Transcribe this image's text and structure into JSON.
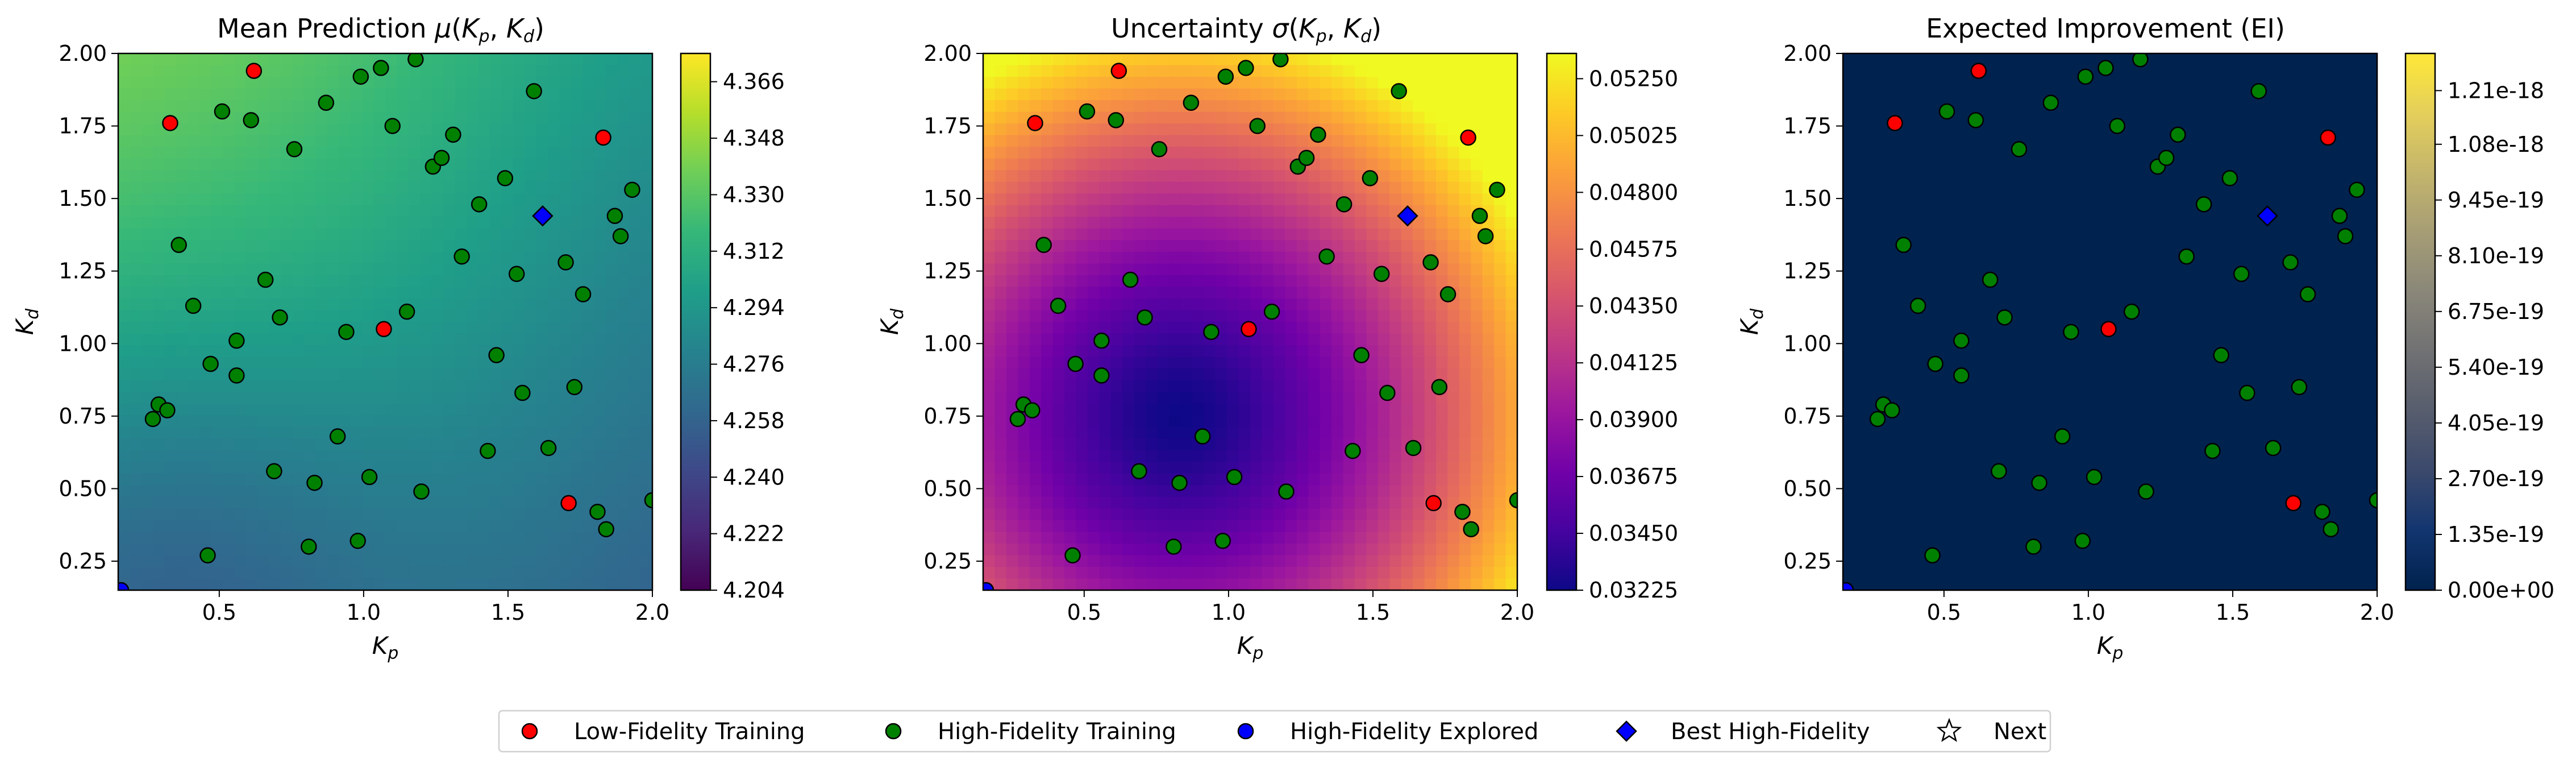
{
  "chart_data": [
    {
      "type": "heatmap",
      "title": "Mean Prediction μ(Kp, Kd)",
      "xlabel": "Kp",
      "ylabel": "Kd",
      "xlim": [
        0.15,
        2.0
      ],
      "ylim": [
        0.15,
        2.0
      ],
      "x_ticks": [
        "0.5",
        "1.0",
        "1.5",
        "2.0"
      ],
      "y_ticks": [
        "0.25",
        "0.50",
        "0.75",
        "1.00",
        "1.25",
        "1.50",
        "1.75",
        "2.00"
      ],
      "colormap": "viridis",
      "colorbar_range": [
        4.204,
        4.375
      ],
      "colorbar_ticks": [
        "4.204",
        "4.222",
        "4.240",
        "4.258",
        "4.276",
        "4.294",
        "4.312",
        "4.330",
        "4.348",
        "4.366"
      ],
      "colorbar_values": [
        4.204,
        4.222,
        4.24,
        4.258,
        4.276,
        4.294,
        4.312,
        4.33,
        4.348,
        4.366
      ]
    },
    {
      "type": "heatmap",
      "title": "Uncertainty σ(Kp, Kd)",
      "xlabel": "Kp",
      "ylabel": "Kd",
      "xlim": [
        0.15,
        2.0
      ],
      "ylim": [
        0.15,
        2.0
      ],
      "x_ticks": [
        "0.5",
        "1.0",
        "1.5",
        "2.0"
      ],
      "y_ticks": [
        "0.25",
        "0.50",
        "0.75",
        "1.00",
        "1.25",
        "1.50",
        "1.75",
        "2.00"
      ],
      "colormap": "plasma",
      "colorbar_range": [
        0.03225,
        0.0535
      ],
      "colorbar_ticks": [
        "0.03225",
        "0.03450",
        "0.03675",
        "0.03900",
        "0.04125",
        "0.04350",
        "0.04575",
        "0.04800",
        "0.05025",
        "0.05250"
      ],
      "colorbar_values": [
        0.03225,
        0.0345,
        0.03675,
        0.039,
        0.04125,
        0.0435,
        0.04575,
        0.048,
        0.05025,
        0.0525
      ]
    },
    {
      "type": "heatmap",
      "title": "Expected Improvement (EI)",
      "xlabel": "Kp",
      "ylabel": "Kd",
      "xlim": [
        0.15,
        2.0
      ],
      "ylim": [
        0.15,
        2.0
      ],
      "x_ticks": [
        "0.5",
        "1.0",
        "1.5",
        "2.0"
      ],
      "y_ticks": [
        "0.25",
        "0.50",
        "0.75",
        "1.00",
        "1.25",
        "1.50",
        "1.75",
        "2.00"
      ],
      "colormap": "cividis",
      "colorbar_range": [
        0.0,
        1.3e-18
      ],
      "colorbar_ticks": [
        "0.00e+00",
        "1.35e-19",
        "2.70e-19",
        "4.05e-19",
        "5.40e-19",
        "6.75e-19",
        "8.10e-19",
        "9.45e-19",
        "1.08e-18",
        "1.21e-18"
      ],
      "colorbar_values": [
        0,
        1.35e-19,
        2.7e-19,
        4.05e-19,
        5.4e-19,
        6.75e-19,
        8.1e-19,
        9.45e-19,
        1.08e-18,
        1.21e-18
      ]
    }
  ],
  "points": {
    "low_fidelity": [
      [
        0.33,
        1.76
      ],
      [
        0.62,
        1.94
      ],
      [
        1.07,
        1.05
      ],
      [
        1.71,
        0.45
      ],
      [
        1.83,
        1.71
      ]
    ],
    "high_fidelity": [
      [
        0.27,
        0.74
      ],
      [
        0.29,
        0.79
      ],
      [
        0.32,
        0.77
      ],
      [
        0.36,
        1.34
      ],
      [
        0.41,
        1.13
      ],
      [
        0.46,
        0.27
      ],
      [
        0.47,
        0.93
      ],
      [
        0.51,
        1.8
      ],
      [
        0.56,
        0.89
      ],
      [
        0.56,
        1.01
      ],
      [
        0.61,
        1.77
      ],
      [
        0.66,
        1.22
      ],
      [
        0.69,
        0.56
      ],
      [
        0.71,
        1.09
      ],
      [
        0.76,
        1.67
      ],
      [
        0.81,
        0.3
      ],
      [
        0.83,
        0.52
      ],
      [
        0.87,
        1.83
      ],
      [
        0.91,
        0.68
      ],
      [
        0.94,
        1.04
      ],
      [
        0.98,
        0.32
      ],
      [
        0.99,
        1.92
      ],
      [
        1.02,
        0.54
      ],
      [
        1.06,
        1.95
      ],
      [
        1.1,
        1.75
      ],
      [
        1.15,
        1.11
      ],
      [
        1.18,
        1.98
      ],
      [
        1.2,
        0.49
      ],
      [
        1.24,
        1.61
      ],
      [
        1.27,
        1.64
      ],
      [
        1.31,
        1.72
      ],
      [
        1.34,
        1.3
      ],
      [
        1.4,
        1.48
      ],
      [
        1.43,
        0.63
      ],
      [
        1.46,
        0.96
      ],
      [
        1.49,
        1.57
      ],
      [
        1.53,
        1.24
      ],
      [
        1.55,
        0.83
      ],
      [
        1.59,
        1.87
      ],
      [
        1.64,
        0.64
      ],
      [
        1.7,
        1.28
      ],
      [
        1.73,
        0.85
      ],
      [
        1.76,
        1.17
      ],
      [
        1.81,
        0.42
      ],
      [
        1.84,
        0.36
      ],
      [
        1.87,
        1.44
      ],
      [
        1.89,
        1.37
      ],
      [
        1.93,
        1.53
      ],
      [
        2.0,
        0.46
      ]
    ],
    "high_fidelity_explored": [
      [
        0.16,
        0.15
      ]
    ],
    "best_high_fidelity": [
      [
        1.62,
        1.44
      ]
    ]
  },
  "legend": {
    "placement": "bottom-center",
    "items": [
      {
        "label": "Low-Fidelity Training",
        "marker": "circle",
        "color": "#ff0000"
      },
      {
        "label": "High-Fidelity Training",
        "marker": "circle",
        "color": "#008000"
      },
      {
        "label": "High-Fidelity Explored",
        "marker": "circle",
        "color": "#0000ff"
      },
      {
        "label": "Best High-Fidelity",
        "marker": "diamond",
        "color": "#0000ff"
      },
      {
        "label": "Next",
        "marker": "star",
        "color": "#ffffff"
      }
    ]
  }
}
